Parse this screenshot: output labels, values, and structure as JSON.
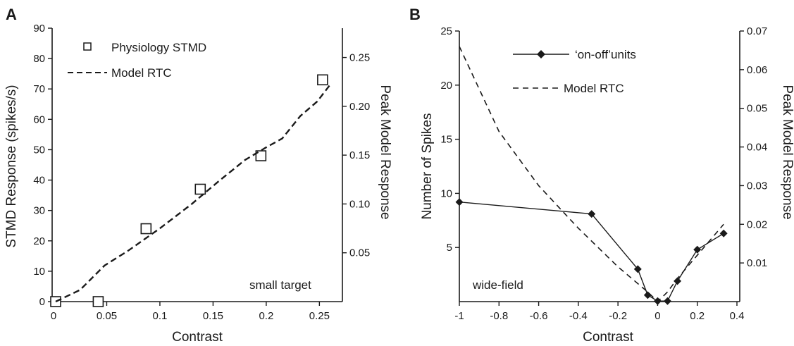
{
  "chart_data": [
    {
      "panel": "A",
      "type": "scatter",
      "xlabel": "Contrast",
      "ylabel": "STMD Response (spikes/s)",
      "y2label": "Peak Model Response",
      "xlim": [
        0,
        0.265
      ],
      "ylim": [
        0,
        90
      ],
      "y2lim": [
        0,
        0.28
      ],
      "xticks": [
        "0",
        "0.05",
        "0.1",
        "0.15",
        "0.2",
        "0.25"
      ],
      "yticks": [
        "0",
        "10",
        "20",
        "30",
        "40",
        "50",
        "60",
        "70",
        "80",
        "90"
      ],
      "y2ticks": [
        "0.05",
        "0.10",
        "0.15",
        "0.20",
        "0.25"
      ],
      "annotation": "small target",
      "legend": {
        "position": "top-left",
        "entries": [
          "Physiology STMD",
          "Model RTC"
        ]
      },
      "series": [
        {
          "name": "Physiology STMD",
          "axis": "left",
          "style": "open-square",
          "points": [
            [
              0.002,
              0
            ],
            [
              0.042,
              0
            ],
            [
              0.087,
              24
            ],
            [
              0.138,
              37
            ],
            [
              0.195,
              48
            ],
            [
              0.253,
              73
            ]
          ]
        },
        {
          "name": "Model RTC",
          "axis": "right",
          "style": "dashed",
          "points": [
            [
              0.002,
              0.0
            ],
            [
              0.025,
              0.012
            ],
            [
              0.048,
              0.037
            ],
            [
              0.07,
              0.052
            ],
            [
              0.1,
              0.075
            ],
            [
              0.13,
              0.1
            ],
            [
              0.155,
              0.123
            ],
            [
              0.18,
              0.145
            ],
            [
              0.2,
              0.158
            ],
            [
              0.215,
              0.167
            ],
            [
              0.232,
              0.19
            ],
            [
              0.248,
              0.205
            ],
            [
              0.26,
              0.222
            ]
          ]
        }
      ]
    },
    {
      "panel": "B",
      "type": "line",
      "xlabel": "Contrast",
      "ylabel": "Number of Spikes",
      "y2label": "Peak Model Response",
      "xlim": [
        -1,
        0.4
      ],
      "ylim": [
        0,
        25
      ],
      "y2lim": [
        0,
        0.07
      ],
      "xticks": [
        "-1",
        "-0.8",
        "-0.6",
        "-0.4",
        "-0.2",
        "0",
        "0.2",
        "0.4"
      ],
      "yticks": [
        "5",
        "10",
        "15",
        "20",
        "25"
      ],
      "y2ticks": [
        "0.01",
        "0.02",
        "0.03",
        "0.04",
        "0.05",
        "0.06",
        "0.07"
      ],
      "annotation": "wide-field",
      "legend": {
        "position": "top-left",
        "entries": [
          "‘on-off’units",
          "Model RTC"
        ]
      },
      "series": [
        {
          "name": "‘on-off’units",
          "axis": "left",
          "style": "solid-diamond",
          "points": [
            [
              -1,
              9.2
            ],
            [
              -0.333,
              8.1
            ],
            [
              -0.1,
              3.0
            ],
            [
              -0.05,
              0.6
            ],
            [
              0,
              0.05
            ],
            [
              0.05,
              0.05
            ],
            [
              0.1,
              1.9
            ],
            [
              0.2,
              4.8
            ],
            [
              0.333,
              6.3
            ]
          ]
        },
        {
          "name": "Model RTC",
          "axis": "right",
          "style": "dashed",
          "points": [
            [
              -1,
              0.066
            ],
            [
              -0.8,
              0.044
            ],
            [
              -0.6,
              0.03
            ],
            [
              -0.4,
              0.019
            ],
            [
              -0.2,
              0.009
            ],
            [
              -0.05,
              0.0025
            ],
            [
              0,
              0.0
            ],
            [
              0.05,
              0.0025
            ],
            [
              0.1,
              0.006
            ],
            [
              0.2,
              0.012
            ],
            [
              0.333,
              0.02
            ]
          ]
        }
      ]
    }
  ]
}
